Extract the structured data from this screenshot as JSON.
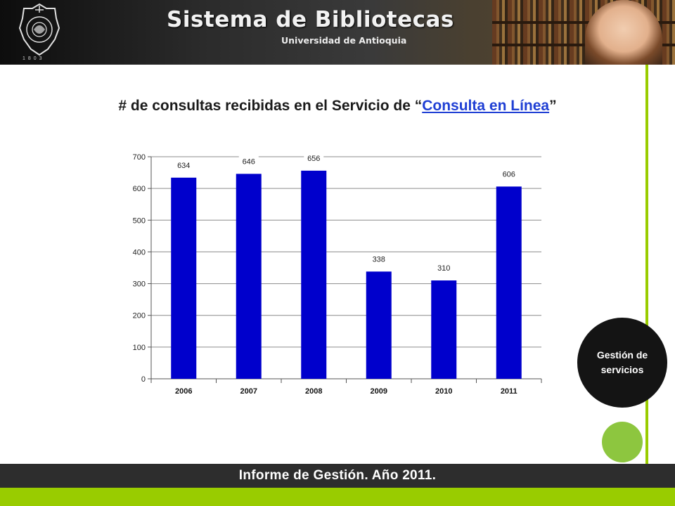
{
  "header": {
    "title": "Sistema de Bibliotecas",
    "subtitle": "Universidad de Antioquia",
    "logo_year": "1803"
  },
  "slide": {
    "title_prefix": "# de consultas recibidas en el Servicio de “",
    "title_link": "Consulta en Línea",
    "title_suffix": "”"
  },
  "badge": {
    "label": "Gestión de servicios"
  },
  "footer": {
    "text": "Informe de Gestión. Año 2011."
  },
  "colors": {
    "bar": "#0000cc",
    "accent_green": "#99cc00",
    "footer_bg": "#2d2d2d",
    "link": "#1f3fd4"
  },
  "chart_data": {
    "type": "bar",
    "categories": [
      "2006",
      "2007",
      "2008",
      "2009",
      "2010",
      "2011"
    ],
    "values": [
      634,
      646,
      656,
      338,
      310,
      606
    ],
    "data_labels": [
      "634",
      "646",
      "656",
      "338",
      "310",
      "606"
    ],
    "ylim": [
      0,
      700
    ],
    "yticks": [
      0,
      100,
      200,
      300,
      400,
      500,
      600,
      700
    ],
    "grid": true,
    "legend": "none"
  }
}
